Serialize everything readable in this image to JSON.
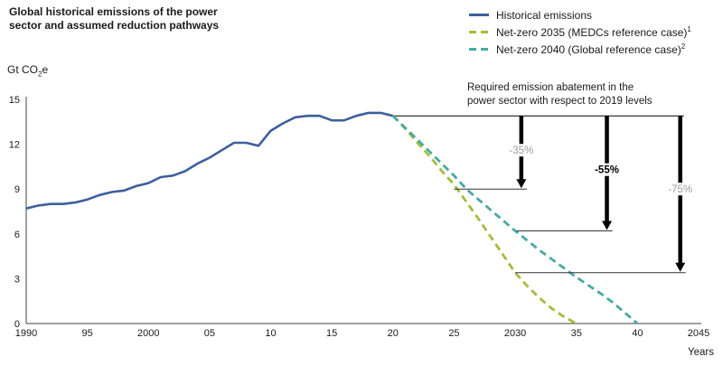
{
  "header": {
    "title_line1": "Global historical emissions of the power",
    "title_line2": "sector and assumed reduction pathways"
  },
  "axis_unit": {
    "prefix": "Gt CO",
    "sub": "2",
    "suffix": "e"
  },
  "legend": {
    "items": [
      {
        "label": "Historical emissions",
        "sup": ""
      },
      {
        "label": "Net-zero 2035 (MEDCs reference case)",
        "sup": "1"
      },
      {
        "label": "Net-zero 2040 (Global reference case)",
        "sup": "2"
      }
    ]
  },
  "chart_data": {
    "type": "line",
    "title": "Global historical emissions of the power sector and assumed reduction pathways",
    "ylabel": "Gt CO2e",
    "xlabel": "Years",
    "xlim": [
      1990,
      2045
    ],
    "ylim": [
      0,
      15
    ],
    "grid": false,
    "legend_position": "top-right",
    "y_ticks": [
      0,
      3,
      6,
      9,
      12,
      15
    ],
    "x_ticks": [
      {
        "label": "1990",
        "year": 1990
      },
      {
        "label": "95",
        "year": 1995
      },
      {
        "label": "2000",
        "year": 2000
      },
      {
        "label": "05",
        "year": 2005
      },
      {
        "label": "10",
        "year": 2010
      },
      {
        "label": "15",
        "year": 2015
      },
      {
        "label": "20",
        "year": 2020
      },
      {
        "label": "25",
        "year": 2025
      },
      {
        "label": "2030",
        "year": 2030
      },
      {
        "label": "35",
        "year": 2035
      },
      {
        "label": "40",
        "year": 2040
      },
      {
        "label": "2045",
        "year": 2045
      }
    ],
    "series": [
      {
        "name": "Historical emissions",
        "color": "#3e5f9b",
        "dash": false,
        "x": [
          1990,
          1991,
          1992,
          1993,
          1994,
          1995,
          1996,
          1997,
          1998,
          1999,
          2000,
          2001,
          2002,
          2003,
          2004,
          2005,
          2006,
          2007,
          2008,
          2009,
          2010,
          2011,
          2012,
          2013,
          2014,
          2015,
          2016,
          2017,
          2018,
          2019,
          2020
        ],
        "values": [
          7.7,
          7.9,
          8.0,
          8.0,
          8.1,
          8.3,
          8.6,
          8.8,
          8.9,
          9.2,
          9.4,
          9.8,
          9.9,
          10.2,
          10.7,
          11.1,
          11.6,
          12.1,
          12.1,
          11.9,
          12.9,
          13.4,
          13.8,
          13.9,
          13.9,
          13.6,
          13.6,
          13.9,
          14.1,
          14.1,
          13.9
        ]
      },
      {
        "name": "Net-zero 2035 (MEDCs reference case)",
        "color": "#a4bd3a",
        "dash": true,
        "x": [
          2020,
          2021,
          2022,
          2023,
          2024,
          2025,
          2026,
          2027,
          2028,
          2029,
          2030,
          2031,
          2032,
          2033,
          2034,
          2035
        ],
        "values": [
          13.9,
          13.05,
          12.1,
          11.2,
          10.2,
          9.3,
          8.15,
          7.0,
          5.8,
          4.6,
          3.4,
          2.5,
          1.7,
          1.0,
          0.45,
          0
        ]
      },
      {
        "name": "Net-zero 2040 (Global reference case)",
        "color": "#47a9a4",
        "dash": true,
        "x": [
          2020,
          2021,
          2022,
          2023,
          2024,
          2025,
          2026,
          2027,
          2028,
          2029,
          2030,
          2031,
          2032,
          2033,
          2034,
          2035,
          2036,
          2037,
          2038,
          2039,
          2040
        ],
        "values": [
          13.9,
          13.1,
          12.3,
          11.5,
          10.7,
          9.9,
          9.0,
          8.3,
          7.6,
          6.9,
          6.2,
          5.55,
          4.9,
          4.3,
          3.7,
          3.1,
          2.55,
          2.0,
          1.4,
          0.7,
          0
        ]
      }
    ],
    "reference_line": {
      "from_year": 2020,
      "to_year": 2043.8,
      "level_gt": 13.9
    },
    "abatement_markers": [
      {
        "label": "-35%",
        "arrow_year": 2030.5,
        "level_gt": 9.0,
        "line_start_year": 2025.0,
        "label_level_gt": 11.6,
        "emphasis": false
      },
      {
        "label": "-55%",
        "arrow_year": 2037.5,
        "level_gt": 6.2,
        "line_start_year": 2030.1,
        "label_level_gt": 10.3,
        "emphasis": true
      },
      {
        "label": "-75%",
        "arrow_year": 2043.5,
        "level_gt": 3.4,
        "line_start_year": 2030.0,
        "label_level_gt": 9.0,
        "emphasis": false
      }
    ],
    "annotation": {
      "line1": "Required emission abatement in the",
      "line2": "power sector with respect to 2019 levels"
    }
  }
}
